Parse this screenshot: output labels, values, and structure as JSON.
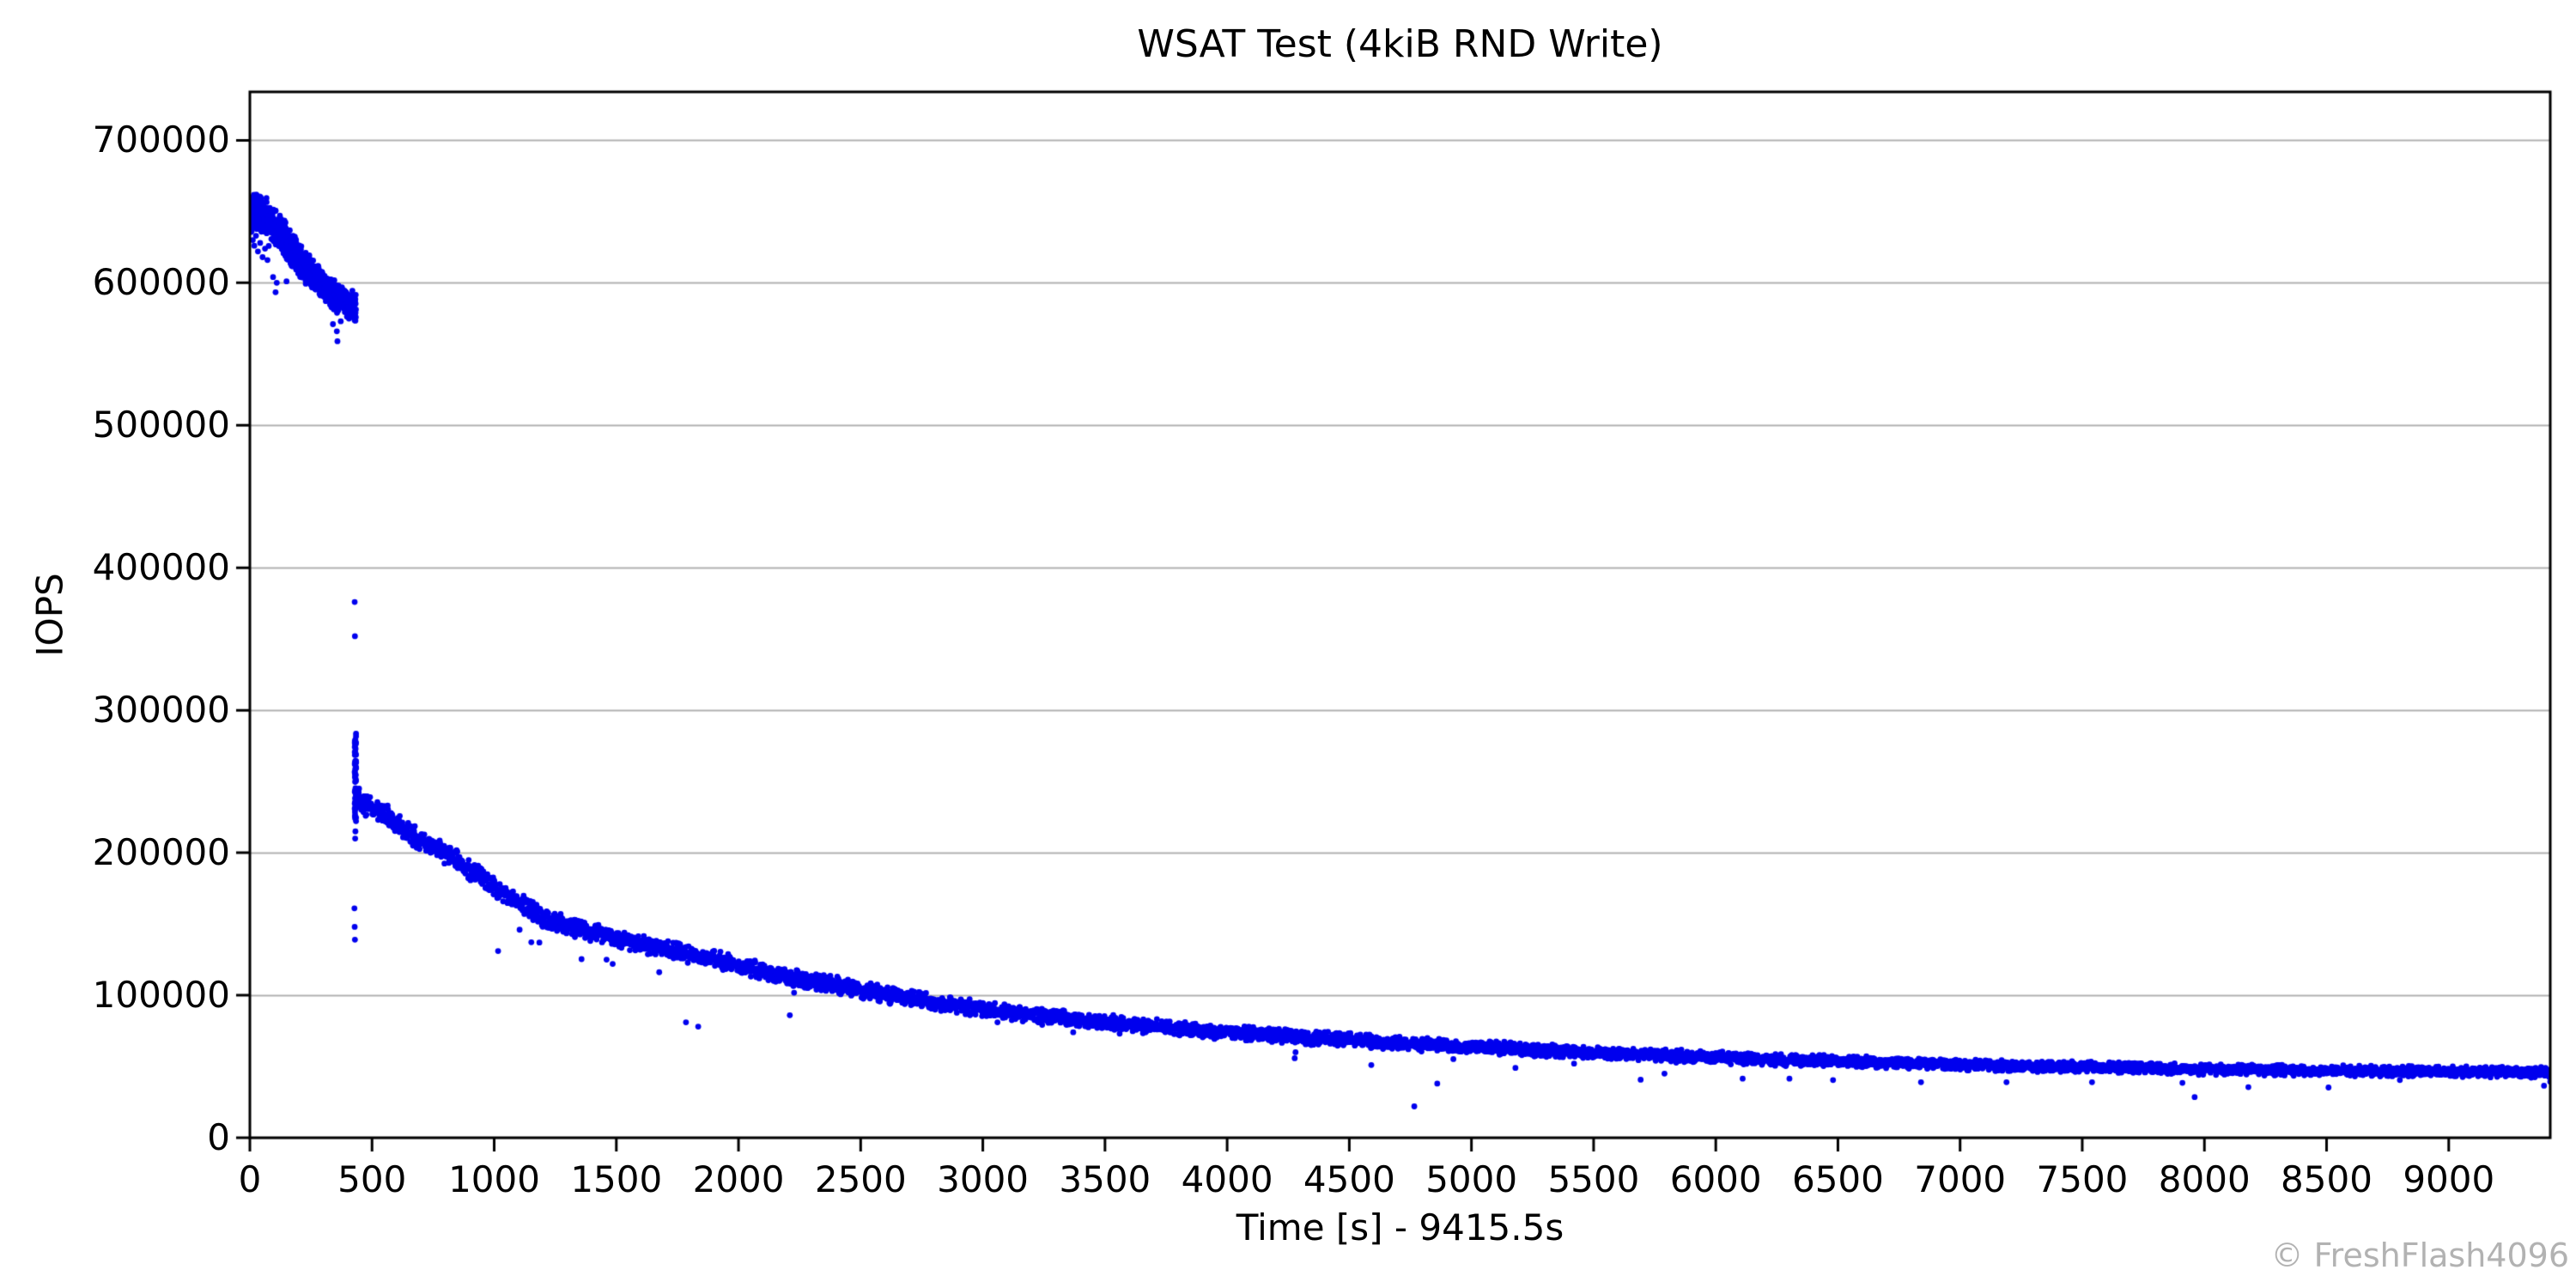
{
  "watermark": "© FreshFlash4096",
  "chart_data": {
    "type": "scatter",
    "title": "WSAT Test (4kiB RND Write)",
    "xlabel": "Time [s] - 9415.5s",
    "ylabel": "IOPS",
    "total_time_s": 9415.5,
    "xlim": [
      0,
      9415.5
    ],
    "ylim": [
      0,
      734000
    ],
    "x_ticks": [
      0,
      500,
      1000,
      1500,
      2000,
      2500,
      3000,
      3500,
      4000,
      4500,
      5000,
      5500,
      6000,
      6500,
      7000,
      7500,
      8000,
      8500,
      9000
    ],
    "y_ticks": [
      0,
      100000,
      200000,
      300000,
      400000,
      500000,
      600000,
      700000
    ],
    "grid": "horizontal-only",
    "grid_color": "#b0b0b0",
    "axis_color": "#000000",
    "marker_color": "#0000ee",
    "marker_radius_px": 3.4,
    "legend": "none",
    "series": [
      {
        "name": "fresh-peak-band",
        "style": "band",
        "t_step": 0.4,
        "anchors": [
          [
            0,
            649000
          ],
          [
            30,
            651000
          ],
          [
            60,
            647000
          ],
          [
            90,
            642000
          ],
          [
            120,
            636000
          ],
          [
            150,
            629000
          ],
          [
            180,
            621000
          ],
          [
            210,
            614000
          ],
          [
            240,
            609000
          ],
          [
            270,
            604000
          ],
          [
            300,
            599000
          ],
          [
            330,
            594000
          ],
          [
            360,
            589000
          ],
          [
            390,
            586000
          ],
          [
            415,
            584000
          ],
          [
            434,
            583000
          ]
        ],
        "halfwidth": [
          [
            0,
            15000
          ],
          [
            100,
            14000
          ],
          [
            250,
            12000
          ],
          [
            380,
            11000
          ],
          [
            425,
            12000
          ],
          [
            434,
            17000
          ]
        ]
      },
      {
        "name": "transition-drop-scatter",
        "style": "points",
        "points": [
          [
            429,
            376000
          ],
          [
            430,
            352000
          ],
          [
            428,
            161000
          ],
          [
            429,
            148000
          ],
          [
            430,
            139000
          ],
          [
            431,
            210000
          ],
          [
            432,
            215000
          ]
        ],
        "column": {
          "t": [
            429,
            435
          ],
          "v": [
            222000,
            284000
          ],
          "n": 70
        }
      },
      {
        "name": "steady-state-decay-band",
        "style": "band",
        "t_step": 1.5,
        "anchors": [
          [
            435,
            239000
          ],
          [
            470,
            234000
          ],
          [
            520,
            229000
          ],
          [
            560,
            225000
          ],
          [
            620,
            218000
          ],
          [
            680,
            211000
          ],
          [
            740,
            205000
          ],
          [
            800,
            199000
          ],
          [
            860,
            193000
          ],
          [
            920,
            186000
          ],
          [
            980,
            179000
          ],
          [
            1040,
            172000
          ],
          [
            1100,
            165000
          ],
          [
            1160,
            158000
          ],
          [
            1220,
            153000
          ],
          [
            1280,
            150000
          ],
          [
            1360,
            146000
          ],
          [
            1440,
            142000
          ],
          [
            1520,
            139000
          ],
          [
            1600,
            136000
          ],
          [
            1700,
            133000
          ],
          [
            1800,
            129000
          ],
          [
            1900,
            125000
          ],
          [
            2000,
            121000
          ],
          [
            2100,
            117000
          ],
          [
            2200,
            113000
          ],
          [
            2300,
            110000
          ],
          [
            2400,
            107000
          ],
          [
            2500,
            104000
          ],
          [
            2600,
            101000
          ],
          [
            2700,
            98000
          ],
          [
            2800,
            95000
          ],
          [
            2900,
            92500
          ],
          [
            3000,
            90000
          ],
          [
            3200,
            86000
          ],
          [
            3400,
            82500
          ],
          [
            3600,
            79500
          ],
          [
            3800,
            76500
          ],
          [
            4000,
            74000
          ],
          [
            4200,
            71500
          ],
          [
            4400,
            69500
          ],
          [
            4600,
            67500
          ],
          [
            4800,
            65500
          ],
          [
            5000,
            63500
          ],
          [
            5200,
            62000
          ],
          [
            5400,
            60500
          ],
          [
            5600,
            59000
          ],
          [
            5800,
            57500
          ],
          [
            6000,
            56500
          ],
          [
            6200,
            55200
          ],
          [
            6400,
            54200
          ],
          [
            6600,
            53200
          ],
          [
            6800,
            52200
          ],
          [
            7000,
            51300
          ],
          [
            7200,
            50500
          ],
          [
            7400,
            49800
          ],
          [
            7600,
            49200
          ],
          [
            7800,
            48600
          ],
          [
            8000,
            48100
          ],
          [
            8200,
            47600
          ],
          [
            8400,
            47200
          ],
          [
            8600,
            46800
          ],
          [
            8800,
            46500
          ],
          [
            9000,
            46200
          ],
          [
            9200,
            46000
          ],
          [
            9415.5,
            45800
          ]
        ],
        "halfwidth": [
          [
            435,
            9000
          ],
          [
            600,
            8500
          ],
          [
            1000,
            7500
          ],
          [
            1300,
            8000
          ],
          [
            1500,
            7000
          ],
          [
            2500,
            6500
          ],
          [
            3500,
            6000
          ],
          [
            5000,
            5200
          ],
          [
            7000,
            4300
          ],
          [
            9415.5,
            4000
          ]
        ]
      },
      {
        "name": "outlier-points",
        "style": "points",
        "points": [
          [
            12,
            630000
          ],
          [
            18,
            626000
          ],
          [
            25,
            633000
          ],
          [
            33,
            622000
          ],
          [
            42,
            628000
          ],
          [
            52,
            618000
          ],
          [
            62,
            624000
          ],
          [
            72,
            616000
          ],
          [
            95,
            604000
          ],
          [
            110,
            600000
          ],
          [
            150,
            601000
          ],
          [
            340,
            571000
          ],
          [
            356,
            566000
          ],
          [
            372,
            573000
          ],
          [
            1016,
            131000
          ],
          [
            1104,
            146000
          ],
          [
            1460,
            125000
          ],
          [
            1485,
            122000
          ],
          [
            1785,
            81000
          ],
          [
            1805,
            127000
          ],
          [
            1835,
            78000
          ],
          [
            2210,
            86000
          ],
          [
            2620,
            94000
          ],
          [
            3060,
            81000
          ],
          [
            3370,
            74000
          ],
          [
            3560,
            73000
          ],
          [
            4280,
            60000
          ],
          [
            4590,
            51000
          ],
          [
            4766,
            22000
          ],
          [
            4860,
            38000
          ],
          [
            5180,
            49000
          ],
          [
            5420,
            52000
          ],
          [
            5790,
            45000
          ],
          [
            6110,
            41500
          ],
          [
            6480,
            40500
          ],
          [
            6840,
            39000
          ],
          [
            7190,
            39000
          ],
          [
            7540,
            39000
          ],
          [
            7910,
            38500
          ],
          [
            7960,
            28500
          ],
          [
            8180,
            35500
          ],
          [
            8800,
            40500
          ],
          [
            9390,
            36500
          ]
        ]
      }
    ]
  }
}
